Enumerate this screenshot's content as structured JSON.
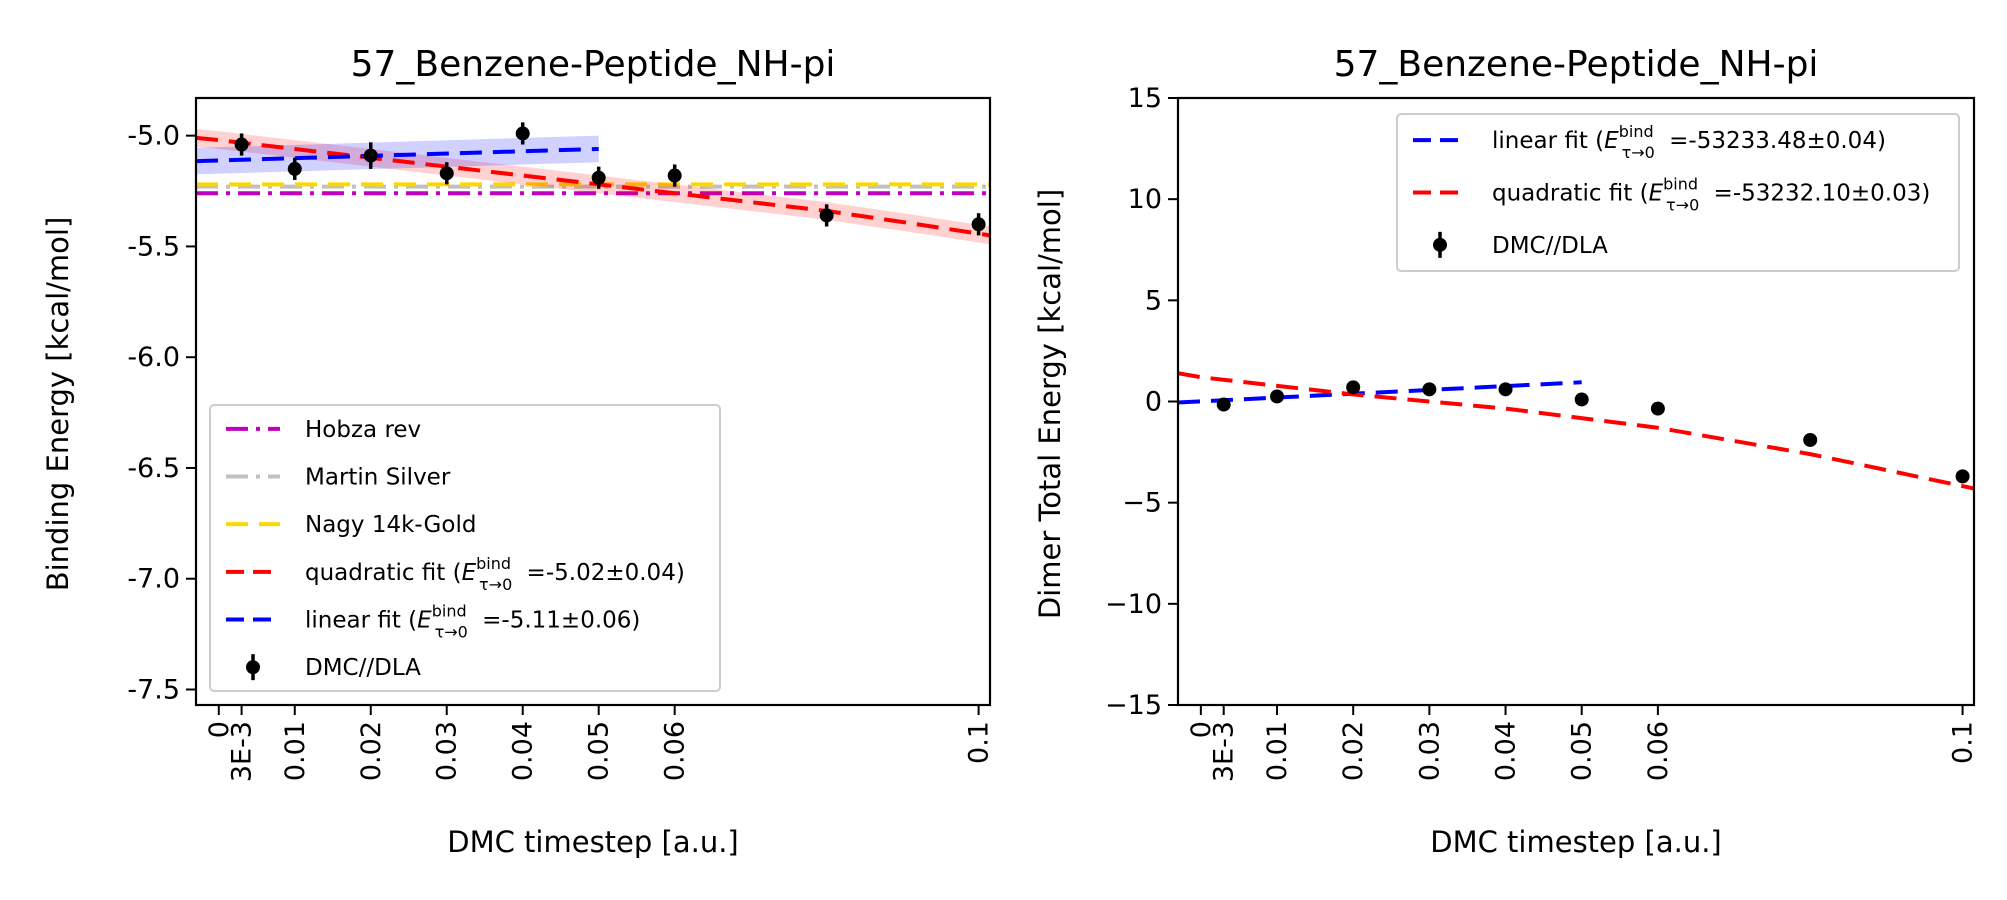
{
  "chart_data": [
    {
      "type": "line",
      "title": "57_Benzene-Peptide_NH-pi",
      "xlabel": "DMC timestep [a.u.]",
      "ylabel": "Binding Energy [kcal/mol]",
      "xlim": [
        -0.003,
        0.1015
      ],
      "ylim": [
        -7.57,
        -4.83
      ],
      "x_ticks": [
        0,
        0.003,
        0.01,
        0.02,
        0.03,
        0.04,
        0.05,
        0.06,
        0.1
      ],
      "x_tick_labels": [
        "0",
        "3E-3",
        "0.01",
        "0.02",
        "0.03",
        "0.04",
        "0.05",
        "0.06",
        "0.1"
      ],
      "y_ticks": [
        -7.5,
        -7.0,
        -6.5,
        -6.0,
        -5.5,
        -5.0
      ],
      "y_tick_labels": [
        "-7.5",
        "-7.0",
        "-6.5",
        "-6.0",
        "-5.5",
        "-5.0"
      ],
      "legend_position": "lower-left",
      "legend": [
        "Hobza rev",
        "Martin Silver",
        "Nagy 14k-Gold",
        "quadratic fit (",
        "linear fit (",
        "DMC//DLA"
      ],
      "legend_fit_values": [
        "=-5.02±0.04)",
        "=-5.11±0.06)"
      ],
      "fit_symbol": {
        "E": "E",
        "sup": "bind",
        "sub": "τ→0"
      },
      "reference_lines": [
        {
          "name": "Hobza rev",
          "y": -5.26,
          "color": "#bf00bf",
          "style": "dashdot"
        },
        {
          "name": "Martin Silver",
          "y": -5.23,
          "color": "#c0c0c0",
          "style": "dashdot"
        },
        {
          "name": "Nagy 14k-Gold",
          "y": -5.22,
          "color": "#ffd700",
          "style": "dashed"
        }
      ],
      "fits": [
        {
          "name": "quadratic fit",
          "color": "#ff0000",
          "x": [
            -0.003,
            0.0,
            0.01,
            0.02,
            0.03,
            0.04,
            0.05,
            0.06,
            0.07,
            0.08,
            0.09,
            0.1015
          ],
          "y": [
            -5.01,
            -5.02,
            -5.06,
            -5.1,
            -5.14,
            -5.18,
            -5.22,
            -5.26,
            -5.3,
            -5.34,
            -5.39,
            -5.45
          ],
          "band": 0.04
        },
        {
          "name": "linear fit",
          "color": "#0000ff",
          "x": [
            -0.003,
            0.05
          ],
          "y": [
            -5.115,
            -5.06
          ],
          "band": 0.06
        }
      ],
      "points": {
        "name": "DMC//DLA",
        "color": "#000000",
        "x": [
          0.003,
          0.01,
          0.02,
          0.03,
          0.04,
          0.05,
          0.06,
          0.08,
          0.1
        ],
        "y": [
          -5.04,
          -5.15,
          -5.09,
          -5.17,
          -4.99,
          -5.19,
          -5.18,
          -5.36,
          -5.4
        ],
        "err": [
          0.05,
          0.05,
          0.06,
          0.05,
          0.05,
          0.05,
          0.05,
          0.05,
          0.05
        ]
      }
    },
    {
      "type": "line",
      "title": "57_Benzene-Peptide_NH-pi",
      "xlabel": "DMC timestep [a.u.]",
      "ylabel": "Dimer Total Energy [kcal/mol]",
      "xlim": [
        -0.003,
        0.1015
      ],
      "ylim": [
        -15,
        15
      ],
      "x_ticks": [
        0,
        0.003,
        0.01,
        0.02,
        0.03,
        0.04,
        0.05,
        0.06,
        0.1
      ],
      "x_tick_labels": [
        "0",
        "3E-3",
        "0.01",
        "0.02",
        "0.03",
        "0.04",
        "0.05",
        "0.06",
        "0.1"
      ],
      "y_ticks": [
        -15,
        -10,
        -5,
        0,
        5,
        10,
        15
      ],
      "y_tick_labels": [
        "−15",
        "−10",
        "−5",
        "0",
        "5",
        "10",
        "15"
      ],
      "legend_position": "upper-right",
      "legend": [
        "linear fit (",
        "quadratic fit (",
        "DMC//DLA"
      ],
      "legend_fit_values": [
        "=-53233.48±0.04)",
        "=-53232.10±0.03)"
      ],
      "fit_symbol": {
        "E": "E",
        "sup": "bind",
        "sub": "τ→0"
      },
      "fits": [
        {
          "name": "linear fit",
          "color": "#0000ff",
          "x": [
            -0.003,
            0.05
          ],
          "y": [
            -0.05,
            0.95
          ],
          "band": 0
        },
        {
          "name": "quadratic fit",
          "color": "#ff0000",
          "x": [
            -0.003,
            0.0,
            0.02,
            0.04,
            0.06,
            0.08,
            0.1015
          ],
          "y": [
            1.4,
            1.2,
            0.35,
            -0.35,
            -1.3,
            -2.6,
            -4.3
          ],
          "band": 0
        }
      ],
      "points": {
        "name": "DMC//DLA",
        "color": "#000000",
        "x": [
          0.003,
          0.01,
          0.02,
          0.03,
          0.04,
          0.05,
          0.06,
          0.08,
          0.1
        ],
        "y": [
          -0.15,
          0.25,
          0.7,
          0.6,
          0.6,
          0.1,
          -0.35,
          -1.9,
          -3.7
        ],
        "err": [
          0.05,
          0.05,
          0.05,
          0.05,
          0.05,
          0.05,
          0.05,
          0.05,
          0.05
        ]
      }
    }
  ]
}
